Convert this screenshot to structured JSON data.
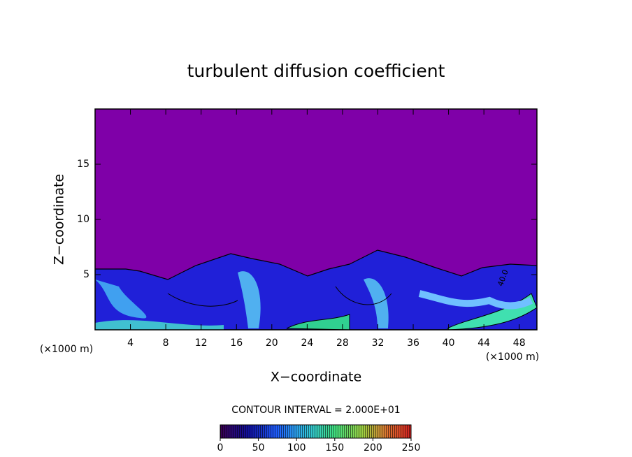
{
  "chart_data": {
    "type": "contour",
    "title": "turbulent diffusion coefficient",
    "x_label": "X−coordinate",
    "y_label": "Z−coordinate",
    "x_unit_left": "(×1000 m)",
    "x_unit_right": "(×1000 m)",
    "xlim": [
      0,
      50
    ],
    "xticks": [
      4,
      8,
      12,
      16,
      20,
      24,
      28,
      32,
      36,
      40,
      44,
      48
    ],
    "ylim": [
      0,
      20
    ],
    "yticks": [
      5,
      10,
      15
    ],
    "contour_interval_text": "CONTOUR INTERVAL = 2.000E+01",
    "contour_label": "40.0",
    "colorbar_lim": [
      0,
      250
    ],
    "colorbar_ticks": [
      0,
      50,
      100,
      150,
      200,
      250
    ],
    "background_color": "#7f00a8"
  }
}
